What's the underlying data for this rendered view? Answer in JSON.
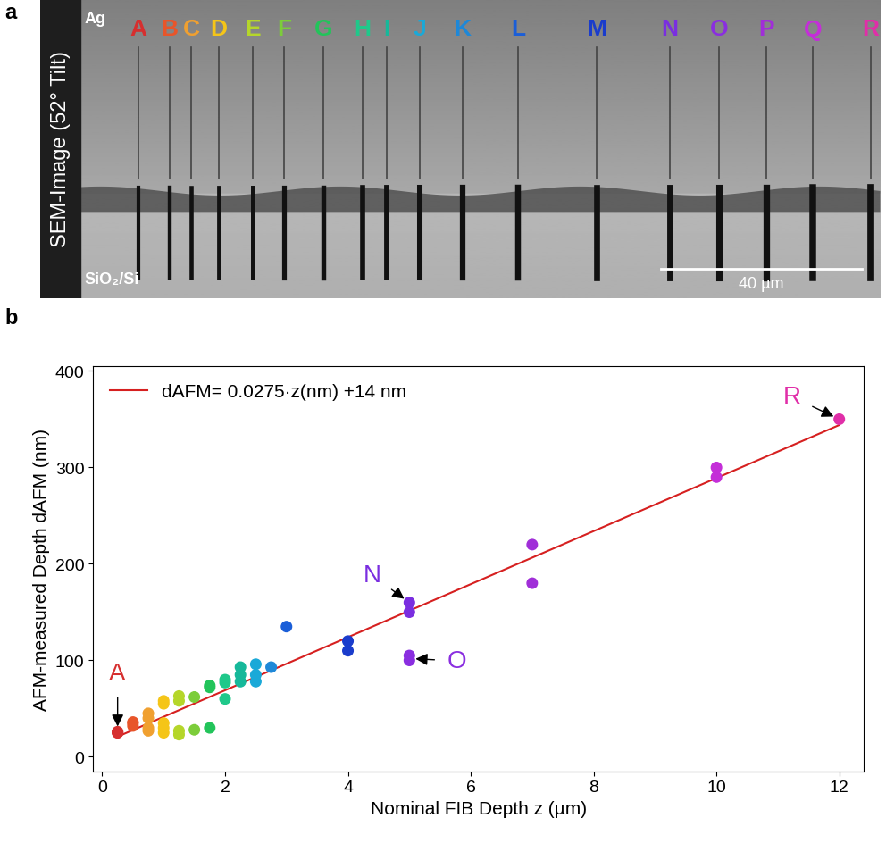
{
  "panel_labels": [
    "a",
    "b"
  ],
  "sem_image": {
    "side_label": "SEM-Image (52° Tilt)",
    "top_material": "Ag",
    "bottom_material": "SiO₂/Si",
    "scale_bar": "40 µm",
    "markers": [
      {
        "label": "A",
        "color": "#d62f2f"
      },
      {
        "label": "B",
        "color": "#e8552a"
      },
      {
        "label": "C",
        "color": "#f0a030"
      },
      {
        "label": "D",
        "color": "#f5c518"
      },
      {
        "label": "E",
        "color": "#b5d62a"
      },
      {
        "label": "F",
        "color": "#7ccd3a"
      },
      {
        "label": "G",
        "color": "#22c45a"
      },
      {
        "label": "H",
        "color": "#1fc88a"
      },
      {
        "label": "I",
        "color": "#16b89a"
      },
      {
        "label": "J",
        "color": "#1aa9d8"
      },
      {
        "label": "K",
        "color": "#1e88d8"
      },
      {
        "label": "L",
        "color": "#1a5ed8"
      },
      {
        "label": "M",
        "color": "#1a3ccc"
      },
      {
        "label": "N",
        "color": "#7a2ee0"
      },
      {
        "label": "O",
        "color": "#8a2ee0"
      },
      {
        "label": "P",
        "color": "#a02ed8"
      },
      {
        "label": "Q",
        "color": "#c42ed8"
      },
      {
        "label": "R",
        "color": "#e02ea8"
      }
    ]
  },
  "chart_data": {
    "type": "scatter",
    "x_label": "Nominal FIB Depth z (µm)",
    "y_label": "AFM-measured Depth dAFM (nm)",
    "xlim": [
      -0.15,
      12.4
    ],
    "xticks": [
      0,
      2,
      4,
      6,
      8,
      10,
      12
    ],
    "ylim": [
      -15,
      405
    ],
    "yticks": [
      0,
      100,
      200,
      300,
      400
    ],
    "legend": "upper left",
    "series": [
      {
        "type": "scatter",
        "x": [
          0.25,
          0.25,
          0.25,
          0.5,
          0.5,
          0.5,
          0.75,
          0.75,
          0.75,
          0.75,
          1.0,
          1.0,
          1.0,
          1.0,
          1.0,
          1.25,
          1.25,
          1.25,
          1.25,
          1.5,
          1.5,
          1.75,
          1.75,
          1.75,
          2.0,
          2.0,
          2.0,
          2.25,
          2.25,
          2.25,
          2.5,
          2.5,
          2.5,
          2.75,
          3.0,
          4.0,
          4.0,
          5.0,
          5.0,
          5.0,
          5.0,
          7.0,
          7.0,
          10.0,
          10.0,
          12.0
        ],
        "values": [
          25,
          25,
          26,
          32,
          35,
          36,
          27,
          30,
          40,
          45,
          25,
          30,
          35,
          55,
          58,
          23,
          27,
          58,
          63,
          28,
          62,
          30,
          72,
          74,
          60,
          77,
          80,
          78,
          85,
          93,
          78,
          85,
          96,
          93,
          135,
          110,
          120,
          150,
          160,
          100,
          105,
          180,
          220,
          290,
          300,
          350
        ],
        "colors": [
          "#d62f2f",
          "#d62f2f",
          "#d62f2f",
          "#e8552a",
          "#e8552a",
          "#e8552a",
          "#f0a030",
          "#f0a030",
          "#f0a030",
          "#f0a030",
          "#f5c518",
          "#f5c518",
          "#f5c518",
          "#f5c518",
          "#f5c518",
          "#b5d62a",
          "#b5d62a",
          "#b5d62a",
          "#b5d62a",
          "#7ccd3a",
          "#7ccd3a",
          "#22c45a",
          "#22c45a",
          "#22c45a",
          "#1fc88a",
          "#1fc88a",
          "#1fc88a",
          "#16b89a",
          "#16b89a",
          "#16b89a",
          "#1aa9d8",
          "#1aa9d8",
          "#1aa9d8",
          "#1e88d8",
          "#1a5ed8",
          "#1a3ccc",
          "#1a3ccc",
          "#7a2ee0",
          "#7a2ee0",
          "#8a2ee0",
          "#8a2ee0",
          "#a02ed8",
          "#a02ed8",
          "#c42ed8",
          "#c42ed8",
          "#e02ea8"
        ]
      },
      {
        "type": "line",
        "name": "dAFM= 0.0275·z(nm) +14 nm",
        "color": "#d62020",
        "x": [
          0.25,
          12.0
        ],
        "values": [
          20.9,
          344
        ]
      }
    ],
    "annotations": [
      {
        "text": "A",
        "x": 0.25,
        "y": 25,
        "color": "#d62f2f"
      },
      {
        "text": "N",
        "x": 5.0,
        "y": 160,
        "color": "#7a2ee0"
      },
      {
        "text": "O",
        "x": 5.0,
        "y": 102,
        "color": "#8a2ee0"
      },
      {
        "text": "R",
        "x": 12.0,
        "y": 350,
        "color": "#e02ea8"
      }
    ]
  }
}
